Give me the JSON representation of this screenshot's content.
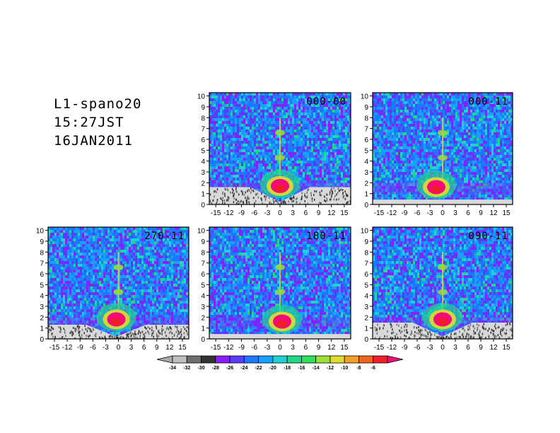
{
  "figure": {
    "station": "L1-spano20",
    "time": "15:27JST",
    "date": "16JAN2011"
  },
  "chart_data": [
    {
      "type": "heatmap",
      "label": "000-00",
      "x_ticks": [
        -15,
        -12,
        -9,
        -6,
        -3,
        0,
        3,
        6,
        9,
        12,
        15
      ],
      "y_ticks": [
        0,
        1,
        2,
        3,
        4,
        5,
        6,
        7,
        8,
        9,
        10
      ],
      "xlim": [
        -16.5,
        16.5
      ],
      "ylim": [
        0,
        10.3
      ],
      "features": {
        "echo_center_x": 0,
        "echo_center_y": 1.7,
        "echo_level": -6,
        "ground_clutter_below": 1.6,
        "sidelobe_y": [
          4.3,
          6.6
        ]
      }
    },
    {
      "type": "heatmap",
      "label": "000-11",
      "x_ticks": [
        -15,
        -12,
        -9,
        -6,
        -3,
        0,
        3,
        6,
        9,
        12,
        15
      ],
      "y_ticks": [
        0,
        1,
        2,
        3,
        4,
        5,
        6,
        7,
        8,
        9,
        10
      ],
      "xlim": [
        -16.5,
        16.5
      ],
      "ylim": [
        0,
        10.3
      ],
      "features": {
        "echo_center_x": -1.5,
        "echo_center_y": 1.6,
        "echo_level": -6,
        "ground_clutter_below": 0.5,
        "sidelobe_y": [
          4.3,
          6.6
        ]
      }
    },
    {
      "type": "heatmap",
      "label": "270-11",
      "x_ticks": [
        -15,
        -12,
        -9,
        -6,
        -3,
        0,
        3,
        6,
        9,
        12,
        15
      ],
      "y_ticks": [
        0,
        1,
        2,
        3,
        4,
        5,
        6,
        7,
        8,
        9,
        10
      ],
      "xlim": [
        -16.5,
        16.5
      ],
      "ylim": [
        0,
        10.3
      ],
      "features": {
        "echo_center_x": -0.5,
        "echo_center_y": 1.8,
        "echo_level": -6,
        "ground_clutter_below": 1.3,
        "sidelobe_y": [
          4.3,
          6.6
        ]
      }
    },
    {
      "type": "heatmap",
      "label": "180-11",
      "x_ticks": [
        -15,
        -12,
        -9,
        -6,
        -3,
        0,
        3,
        6,
        9,
        12,
        15
      ],
      "y_ticks": [
        0,
        1,
        2,
        3,
        4,
        5,
        6,
        7,
        8,
        9,
        10
      ],
      "xlim": [
        -16.5,
        16.5
      ],
      "ylim": [
        0,
        10.3
      ],
      "features": {
        "echo_center_x": 0.5,
        "echo_center_y": 1.6,
        "echo_level": -6,
        "ground_clutter_below": 0.5,
        "sidelobe_y": [
          4.3,
          6.6
        ]
      }
    },
    {
      "type": "heatmap",
      "label": "090-11",
      "x_ticks": [
        -15,
        -12,
        -9,
        -6,
        -3,
        0,
        3,
        6,
        9,
        12,
        15
      ],
      "y_ticks": [
        0,
        1,
        2,
        3,
        4,
        5,
        6,
        7,
        8,
        9,
        10
      ],
      "xlim": [
        -16.5,
        16.5
      ],
      "ylim": [
        0,
        10.3
      ],
      "features": {
        "echo_center_x": 0,
        "echo_center_y": 1.8,
        "echo_level": -6,
        "ground_clutter_below": 1.5,
        "sidelobe_y": [
          4.3,
          6.6
        ]
      }
    }
  ],
  "colorbar": {
    "levels": [
      -34,
      -32,
      -30,
      -28,
      -26,
      -24,
      -22,
      -20,
      -18,
      -16,
      -14,
      -12,
      -10,
      -8,
      -6
    ],
    "colors": [
      "#a9a9a9",
      "#bfbfbf",
      "#6e6e6e",
      "#333333",
      "#8c1dff",
      "#5a3cff",
      "#1e78ff",
      "#19a0ff",
      "#1ed2d2",
      "#1fd68a",
      "#2ee05a",
      "#9be032",
      "#e1dc30",
      "#f0a028",
      "#f06420",
      "#f01e28",
      "#f50a78"
    ]
  }
}
